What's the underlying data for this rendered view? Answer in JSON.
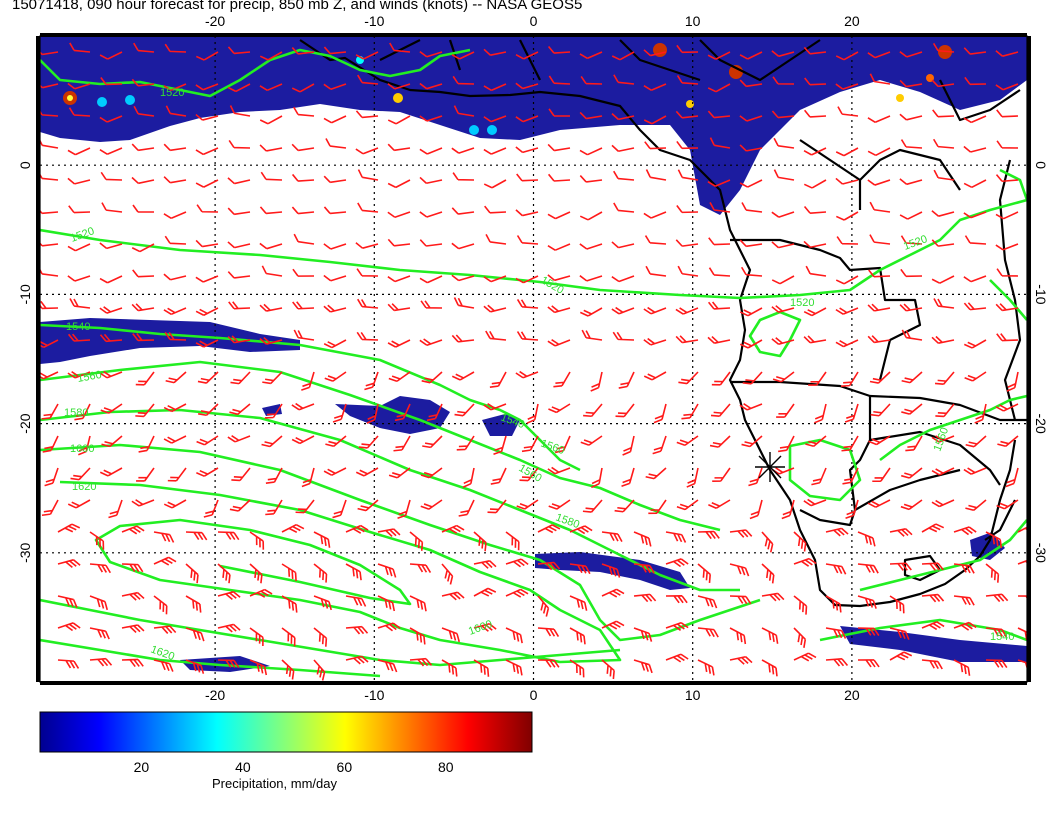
{
  "title": "15071418, 090 hour forecast for precip, 850 mb Z, and winds (knots) -- NASA GEOS5",
  "map": {
    "lon_range": [
      -31,
      31
    ],
    "lat_range": [
      -40,
      10
    ],
    "lon_ticks": [
      "-20",
      "-10",
      "0",
      "10",
      "20"
    ],
    "lat_ticks": [
      "0",
      "-10",
      "-20",
      "-30"
    ],
    "gridlines": "dotted",
    "colors": {
      "coast": "#000000",
      "contour": "#22ee22",
      "wind_barb": "#ff1a1a",
      "precip_light": "#1a1aa0",
      "precip_heavy": "#aa0000"
    },
    "contour_labels": [
      "1520",
      "1520",
      "1520",
      "1520",
      "1540",
      "1540",
      "1560",
      "1560",
      "1560",
      "1560",
      "1580",
      "1580",
      "1600",
      "1600",
      "1620",
      "1620",
      "1540",
      "1520"
    ],
    "station_marker": "asterisk-icon"
  },
  "colorbar": {
    "ticks": [
      "20",
      "40",
      "60",
      "80"
    ],
    "range": [
      0,
      97
    ],
    "label": "Precipitation, mm/day"
  }
}
